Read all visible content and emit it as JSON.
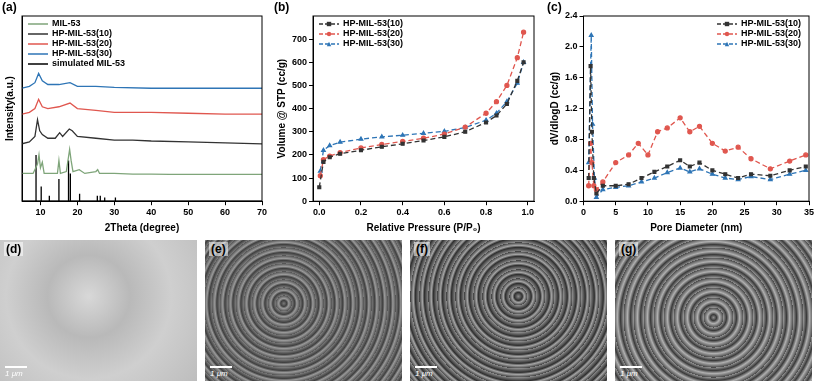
{
  "chart_data": [
    {
      "type": "line",
      "title": "(a)",
      "x_label": "2Theta (degree)",
      "y_label": "Intensity(a.u.)",
      "xlim": [
        5,
        70
      ],
      "xticks": [
        10,
        20,
        30,
        40,
        50,
        60,
        70
      ],
      "ylim": [
        0,
        100
      ],
      "tick_labels": "x",
      "grid": false,
      "legend": "upper left",
      "series": [
        {
          "name": "MIL-53",
          "color": "#7fa57a",
          "marker": "none",
          "line_style": "solid",
          "x": [
            5,
            8,
            9.2,
            9.6,
            10.0,
            10.5,
            11,
            12.5,
            14.6,
            15.0,
            15.4,
            17,
            17.6,
            17.9,
            18.3,
            18.8,
            20.5,
            22,
            25,
            25.5,
            26,
            30,
            35,
            40,
            45,
            50,
            55,
            60,
            65,
            70
          ],
          "values": [
            15,
            15,
            20,
            25,
            18,
            21,
            15,
            15,
            15,
            22,
            15,
            16,
            24,
            28,
            22,
            16,
            17,
            15,
            16,
            17,
            15,
            15,
            14.6,
            14.6,
            14.5,
            14.5,
            14.5,
            14.5,
            14.5,
            14.5
          ]
        },
        {
          "name": "HP-MIL-53(10)",
          "color": "#333333",
          "marker": "none",
          "line_style": "solid",
          "x": [
            5,
            7,
            8.5,
            9.2,
            9.8,
            10.5,
            12,
            14,
            15.2,
            16,
            17.8,
            18.6,
            20,
            25,
            30,
            35,
            40,
            50,
            60,
            70
          ],
          "values": [
            31,
            32,
            35,
            44,
            38,
            36,
            34,
            34,
            37,
            35,
            39,
            38,
            35,
            34,
            33,
            33,
            32.5,
            32,
            31.5,
            31
          ]
        },
        {
          "name": "HP-MIL-53(20)",
          "color": "#e0574f",
          "marker": "none",
          "line_style": "solid",
          "x": [
            5,
            7,
            8.5,
            9.5,
            10.5,
            12,
            15,
            18,
            20,
            25,
            30,
            40,
            50,
            60,
            70
          ],
          "values": [
            47,
            48,
            50,
            55,
            51,
            50,
            51,
            53,
            50,
            49,
            48,
            48,
            47.5,
            47,
            47
          ]
        },
        {
          "name": "HP-MIL-53(30)",
          "color": "#2e75b6",
          "marker": "none",
          "line_style": "solid",
          "x": [
            5,
            7,
            8.5,
            9.5,
            10.5,
            12,
            15,
            18,
            20,
            25,
            30,
            40,
            50,
            60,
            70
          ],
          "values": [
            61,
            62,
            64,
            69,
            65,
            63,
            63,
            64,
            62,
            62,
            61.5,
            61,
            61,
            61,
            61
          ]
        },
        {
          "name": "simulated MIL-53",
          "color": "#000000",
          "marker": "none",
          "line_style": "solid",
          "x": [
            5,
            8.8,
            8.8,
            8.8,
            10.2,
            10.2,
            10.2,
            12.4,
            12.4,
            12.4,
            15,
            15,
            15,
            17.6,
            17.6,
            17.6,
            18.1,
            18.1,
            18.1,
            20.6,
            20.6,
            20.6,
            25.4,
            25.4,
            25.4,
            26.2,
            26.2,
            26.2,
            27.4,
            27.4,
            27.4,
            30.3,
            30.3,
            30.3,
            70
          ],
          "values": [
            0,
            0,
            25,
            0,
            0,
            8,
            0,
            0,
            3,
            0,
            0,
            12,
            0,
            0,
            22,
            0,
            0,
            15,
            0,
            0,
            4,
            0,
            0,
            3,
            0,
            0,
            3,
            0,
            0,
            2,
            0,
            0,
            2,
            0,
            0
          ]
        }
      ]
    },
    {
      "type": "line",
      "title": "(b)",
      "x_label": "Relative Pressure (P/P₀)",
      "y_label": "Volume @ STP (cc/g)",
      "xlim": [
        -0.03,
        1.03
      ],
      "xticks": [
        {
          "value": 0,
          "label": "0.0"
        },
        0.2,
        0.4,
        0.6,
        0.8,
        {
          "value": 1,
          "label": "1.0"
        }
      ],
      "ylim": [
        0,
        800
      ],
      "yticks": [
        0,
        100,
        200,
        300,
        400,
        500,
        600,
        700
      ],
      "grid": false,
      "legend": "upper left",
      "series": [
        {
          "name": "HP-MIL-53(10)",
          "color": "#333333",
          "marker": "square",
          "line_style": "dashed",
          "x": [
            0.0,
            0.02,
            0.05,
            0.1,
            0.2,
            0.3,
            0.4,
            0.5,
            0.6,
            0.7,
            0.8,
            0.85,
            0.9,
            0.95,
            0.98
          ],
          "values": [
            60,
            170,
            190,
            205,
            220,
            235,
            248,
            262,
            278,
            300,
            340,
            370,
            420,
            520,
            600
          ]
        },
        {
          "name": "HP-MIL-53(20)",
          "color": "#e0574f",
          "marker": "circle",
          "line_style": "dashed",
          "x": [
            0.005,
            0.02,
            0.05,
            0.1,
            0.2,
            0.3,
            0.4,
            0.5,
            0.6,
            0.7,
            0.8,
            0.85,
            0.9,
            0.95,
            0.98
          ],
          "values": [
            110,
            180,
            195,
            210,
            230,
            245,
            258,
            272,
            290,
            320,
            380,
            430,
            500,
            620,
            730
          ]
        },
        {
          "name": "HP-MIL-53(30)",
          "color": "#2e75b6",
          "marker": "triangle",
          "line_style": "dashed",
          "x": [
            0.005,
            0.02,
            0.05,
            0.1,
            0.2,
            0.3,
            0.4,
            0.5,
            0.6,
            0.7,
            0.8,
            0.85,
            0.9,
            0.95,
            0.98
          ],
          "values": [
            130,
            220,
            240,
            255,
            268,
            278,
            285,
            293,
            302,
            318,
            350,
            380,
            430,
            510,
            600
          ]
        }
      ]
    },
    {
      "type": "line",
      "title": "(c)",
      "x_label": "Pore Diameter (nm)",
      "y_label": "dV/dlogD (cc/g)",
      "xlim": [
        0,
        35
      ],
      "xticks": [
        0,
        5,
        10,
        15,
        20,
        25,
        30,
        35
      ],
      "ylim": [
        0,
        2.4
      ],
      "yticks": [
        {
          "value": 0,
          "label": "0.0"
        },
        0.4,
        0.8,
        1.2,
        1.6,
        {
          "value": 2,
          "label": "2.0"
        },
        2.4
      ],
      "grid": false,
      "legend": "upper right",
      "series": [
        {
          "name": "HP-MIL-53(10)",
          "color": "#333333",
          "marker": "square",
          "line_style": "dashed",
          "x": [
            0.8,
            1.1,
            1.3,
            1.6,
            2,
            3,
            5,
            7,
            9,
            11,
            13,
            15,
            16.5,
            18,
            20,
            22,
            24,
            26,
            29,
            32,
            34.5
          ],
          "values": [
            0.3,
            1.75,
            0.9,
            0.3,
            0.1,
            0.2,
            0.2,
            0.22,
            0.3,
            0.38,
            0.45,
            0.53,
            0.45,
            0.5,
            0.4,
            0.35,
            0.3,
            0.35,
            0.33,
            0.4,
            0.45
          ]
        },
        {
          "name": "HP-MIL-53(20)",
          "color": "#e0574f",
          "marker": "circle",
          "line_style": "dashed",
          "x": [
            0.8,
            1.1,
            1.3,
            1.6,
            2,
            3,
            5,
            7,
            8.5,
            10,
            11.5,
            13,
            15,
            16.5,
            18,
            20,
            22,
            24,
            26,
            29,
            32,
            34.5
          ],
          "values": [
            0.2,
            0.75,
            0.5,
            0.2,
            0.15,
            0.25,
            0.5,
            0.6,
            0.75,
            0.6,
            0.9,
            0.95,
            1.08,
            0.9,
            0.97,
            0.75,
            0.65,
            0.7,
            0.55,
            0.42,
            0.52,
            0.6
          ]
        },
        {
          "name": "HP-MIL-53(30)",
          "color": "#2e75b6",
          "marker": "triangle",
          "line_style": "dashed",
          "x": [
            0.8,
            1.2,
            1.4,
            1.7,
            2,
            3,
            5,
            7,
            9,
            11,
            13,
            15,
            16.5,
            18,
            20,
            22,
            24,
            26,
            29,
            32,
            34.5
          ],
          "values": [
            0.5,
            2.15,
            1.0,
            0.3,
            0.05,
            0.15,
            0.18,
            0.2,
            0.25,
            0.3,
            0.37,
            0.43,
            0.38,
            0.42,
            0.35,
            0.3,
            0.28,
            0.32,
            0.28,
            0.35,
            0.4
          ]
        }
      ]
    }
  ],
  "images": [
    {
      "label": "(d)",
      "scale_bar": "1 μm"
    },
    {
      "label": "(e)",
      "scale_bar": "1 μm"
    },
    {
      "label": "(f)",
      "scale_bar": "1 μm"
    },
    {
      "label": "(g)",
      "scale_bar": "1 μm"
    }
  ]
}
